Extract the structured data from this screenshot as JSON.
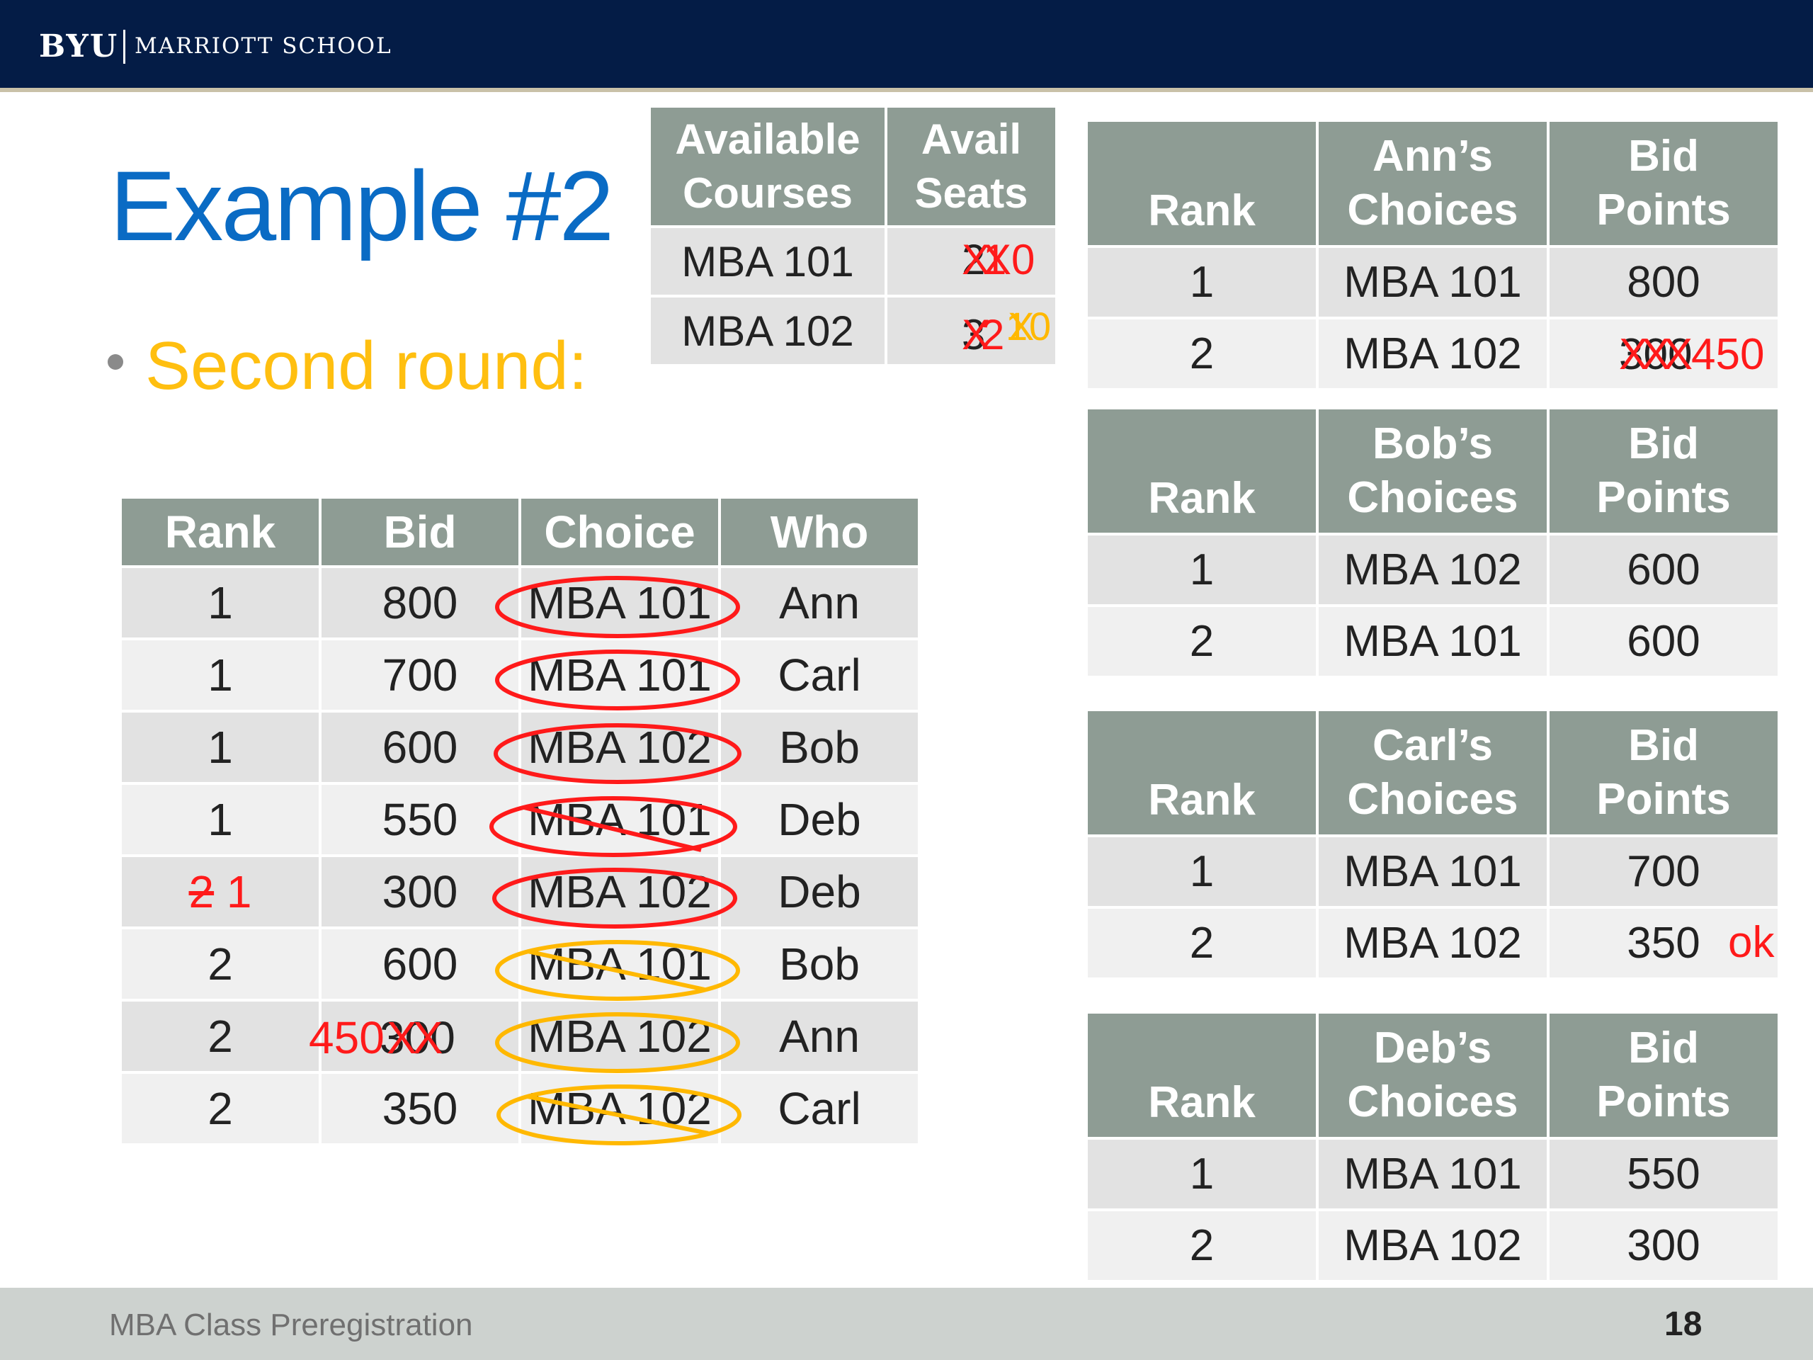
{
  "header": {
    "logo_primary": "BYU",
    "logo_secondary": "MARRIOTT SCHOOL"
  },
  "title": "Example #2",
  "bullet": "Second round:",
  "seats_table": {
    "headers": [
      "Available Courses",
      "Avail Seats"
    ],
    "rows": [
      {
        "course": "MBA 101",
        "seats": "2",
        "edits_red": "X",
        "edit_red_2": "1",
        "edit_red_3": "X",
        "final": "0"
      },
      {
        "course": "MBA 102",
        "seats": "3",
        "edits_red": "X",
        "edit_red_2": "2",
        "edit_ylw": "1",
        "edit_ylw_2": "X",
        "final": "0"
      }
    ]
  },
  "main_table": {
    "headers": [
      "Rank",
      "Bid",
      "Choice",
      "Who"
    ],
    "rows": [
      {
        "rank": "1",
        "bid": "800",
        "choice": "MBA 101",
        "who": "Ann"
      },
      {
        "rank": "1",
        "bid": "700",
        "choice": "MBA 101",
        "who": "Carl"
      },
      {
        "rank": "1",
        "bid": "600",
        "choice": "MBA 102",
        "who": "Bob"
      },
      {
        "rank": "1",
        "bid": "550",
        "choice": "MBA 101",
        "who": "Deb"
      },
      {
        "rank": "",
        "rank_struck": "2",
        "rank_new": "1",
        "bid": "300",
        "choice": "MBA 102",
        "who": "Deb"
      },
      {
        "rank": "2",
        "bid": "600",
        "choice": "MBA 101",
        "who": "Bob"
      },
      {
        "rank": "2",
        "bid": "",
        "bid_new": "450",
        "bid_struck": "300",
        "bid_marks": "XX",
        "choice": "MBA 102",
        "who": "Ann"
      },
      {
        "rank": "2",
        "bid": "350",
        "choice": "MBA 102",
        "who": "Carl"
      }
    ]
  },
  "preference_tables": [
    {
      "id": "ann",
      "headers": [
        "Rank",
        "Ann’s Choices",
        "Bid Points"
      ],
      "rows": [
        {
          "rank": "1",
          "choice": "MBA 101",
          "points": "800"
        },
        {
          "rank": "2",
          "choice": "MBA 102",
          "points": "300",
          "points_new": "450",
          "points_marks": "XXX"
        }
      ]
    },
    {
      "id": "bob",
      "headers": [
        "Rank",
        "Bob’s Choices",
        "Bid Points"
      ],
      "rows": [
        {
          "rank": "1",
          "choice": "MBA 102",
          "points": "600"
        },
        {
          "rank": "2",
          "choice": "MBA 101",
          "points": "600"
        }
      ]
    },
    {
      "id": "carl",
      "headers": [
        "Rank",
        "Carl’s Choices",
        "Bid Points"
      ],
      "rows": [
        {
          "rank": "1",
          "choice": "MBA 101",
          "points": "700"
        },
        {
          "rank": "2",
          "choice": "MBA 102",
          "points": "350",
          "note": "ok"
        }
      ]
    },
    {
      "id": "deb",
      "headers": [
        "Rank",
        "Deb’s Choices",
        "Bid Points"
      ],
      "rows": [
        {
          "rank": "1",
          "choice": "MBA 101",
          "points": "550"
        },
        {
          "rank": "2",
          "choice": "MBA 102",
          "points": "300"
        }
      ]
    }
  ],
  "annotation_colors": {
    "accepted": "#ff1a1a",
    "rejected": "#ffb800"
  },
  "footer": {
    "text": "MBA Class Preregistration",
    "page": "18"
  }
}
